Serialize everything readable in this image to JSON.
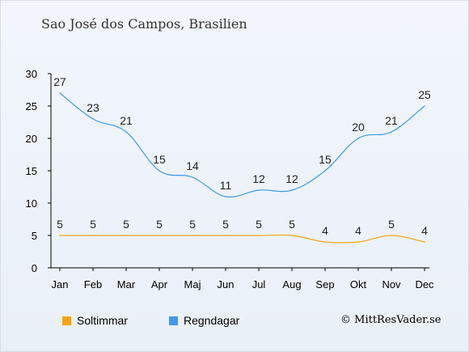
{
  "title": "Sao José dos Campos, Brasilien",
  "credit": "© MittResVader.se",
  "chart_data": {
    "type": "line",
    "categories": [
      "Jan",
      "Feb",
      "Mar",
      "Apr",
      "Maj",
      "Jun",
      "Jul",
      "Aug",
      "Sep",
      "Okt",
      "Nov",
      "Dec"
    ],
    "ylim": [
      0,
      30
    ],
    "yticks": [
      0,
      5,
      10,
      15,
      20,
      25,
      30
    ],
    "grid": false,
    "legend_position": "bottom-left",
    "series": [
      {
        "name": "Soltimmar",
        "color": "#f4a418",
        "values": [
          5,
          5,
          5,
          5,
          5,
          5,
          5,
          5,
          4,
          4,
          5,
          4
        ]
      },
      {
        "name": "Regndagar",
        "color": "#3d9be9",
        "values": [
          27,
          23,
          21,
          15,
          14,
          11,
          12,
          12,
          15,
          20,
          21,
          25
        ]
      }
    ]
  }
}
